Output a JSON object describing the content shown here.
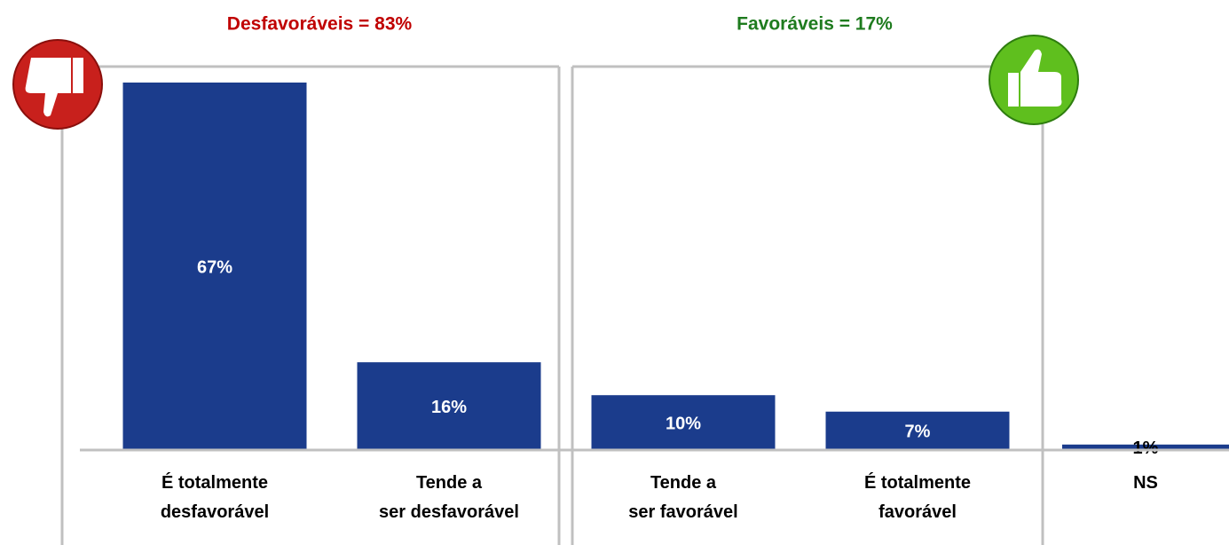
{
  "chart_data": {
    "type": "bar",
    "annotations": [
      "Desfavoráveis = 83%",
      "Favoráveis = 17%"
    ],
    "categories": [
      "É totalmente\ndesfavorável",
      "Tende a\nser desfavorável",
      "Tende a\nser favorável",
      "É totalmente\nfavorável",
      "NS"
    ],
    "values": [
      67,
      16,
      10,
      7,
      1
    ],
    "value_labels": [
      "67%",
      "16%",
      "10%",
      "7%",
      "1%"
    ],
    "color": "#1b3c8c"
  }
}
